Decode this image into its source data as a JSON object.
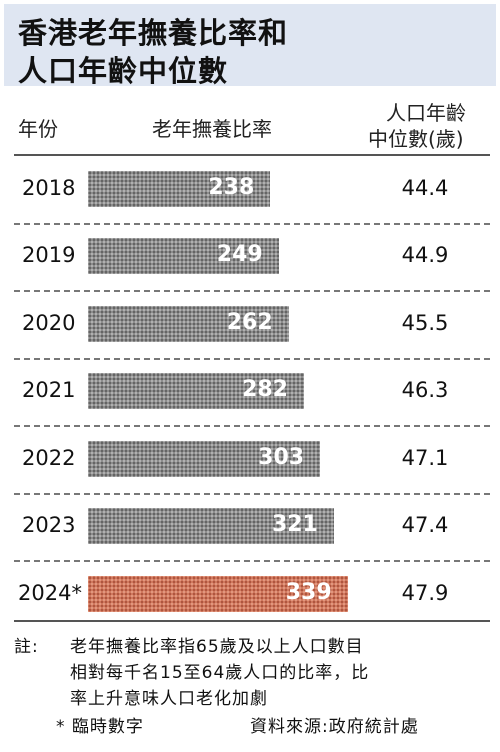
{
  "title": {
    "line1": "香港老年撫養比率和",
    "line2": "人口年齡中位數"
  },
  "headers": {
    "year": "年份",
    "ratio": "老年撫養比率",
    "median_age_line1": "人口年齡",
    "median_age_line2": "中位數(歲)"
  },
  "chart_data": {
    "type": "bar",
    "orientation": "horizontal",
    "categories": [
      "2018",
      "2019",
      "2020",
      "2021",
      "2022",
      "2023",
      "2024*"
    ],
    "series": [
      {
        "values": [
          238,
          249,
          262,
          282,
          303,
          321,
          339
        ]
      }
    ],
    "median_age": [
      "44.4",
      "44.9",
      "45.5",
      "46.3",
      "47.1",
      "47.4",
      "47.9"
    ],
    "highlight_index": 6,
    "colors": {
      "bar": "#8c8c8c",
      "highlight": "#d0785e"
    }
  },
  "notes": {
    "note_label": "註:",
    "note_line1": "老年撫養比率指65歲及以上人口數目",
    "note_line2": "相對每千名15至64歲人口的比率，比",
    "note_line3": "率上升意味人口老化加劇",
    "provisional": "* 臨時數字",
    "source": "資料來源:政府統計處"
  }
}
